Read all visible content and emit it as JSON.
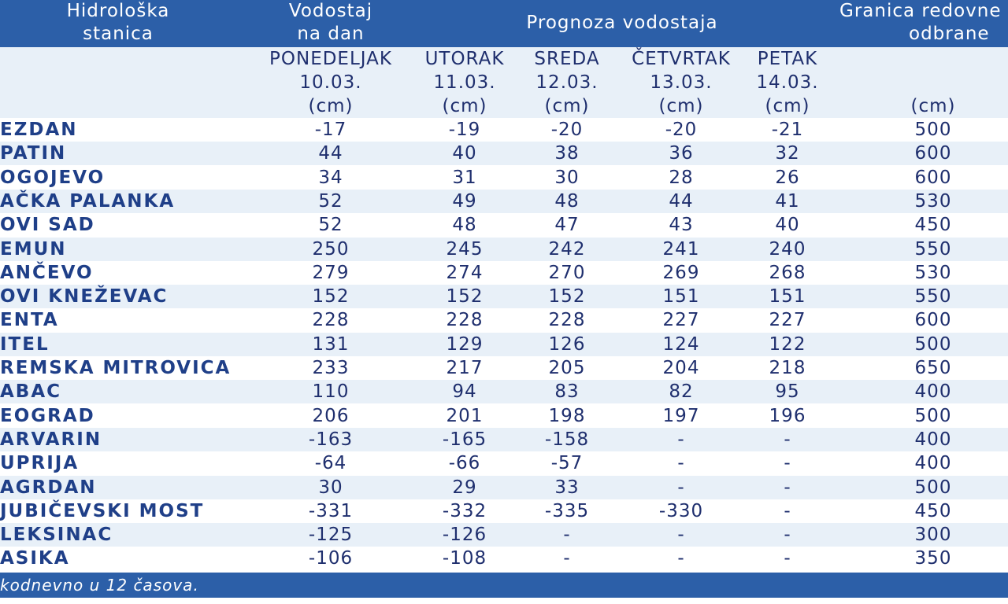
{
  "header": {
    "station_col": [
      "Hidrološka",
      "stanica"
    ],
    "today_col": [
      "Vodostaj",
      "na dan"
    ],
    "forecast_col": "Prognoza vodostaja",
    "limit_col": [
      "Granica redovne",
      "odbrane"
    ]
  },
  "subheader": {
    "today": [
      "PONEDELJAK",
      "10.03.",
      "(cm)"
    ],
    "d1": [
      "UTORAK",
      "11.03.",
      "(cm)"
    ],
    "d2": [
      "SREDA",
      "12.03.",
      "(cm)"
    ],
    "d3": [
      "ČETVRTAK",
      "13.03.",
      "(cm)"
    ],
    "d4": [
      "PETAK",
      "14.03.",
      "(cm)"
    ],
    "limit_unit": "(cm)"
  },
  "rows": [
    {
      "station": "EZDAN",
      "values": [
        "-17",
        "-19",
        "-20",
        "-20",
        "-21",
        "500"
      ]
    },
    {
      "station": "PATIN",
      "values": [
        "44",
        "40",
        "38",
        "36",
        "32",
        "600"
      ]
    },
    {
      "station": "OGOJEVO",
      "values": [
        "34",
        "31",
        "30",
        "28",
        "26",
        "600"
      ]
    },
    {
      "station": "AČKA PALANKA",
      "values": [
        "52",
        "49",
        "48",
        "44",
        "41",
        "530"
      ]
    },
    {
      "station": "OVI SAD",
      "values": [
        "52",
        "48",
        "47",
        "43",
        "40",
        "450"
      ]
    },
    {
      "station": "EMUN",
      "values": [
        "250",
        "245",
        "242",
        "241",
        "240",
        "550"
      ]
    },
    {
      "station": "ANČEVO",
      "values": [
        "279",
        "274",
        "270",
        "269",
        "268",
        "530"
      ]
    },
    {
      "station": "OVI KNEŽEVAC",
      "values": [
        "152",
        "152",
        "152",
        "151",
        "151",
        "550"
      ]
    },
    {
      "station": "ENTA",
      "values": [
        "228",
        "228",
        "228",
        "227",
        "227",
        "600"
      ]
    },
    {
      "station": "ITEL",
      "values": [
        "131",
        "129",
        "126",
        "124",
        "122",
        "500"
      ]
    },
    {
      "station": "REMSKA MITROVICA",
      "values": [
        "233",
        "217",
        "205",
        "204",
        "218",
        "650"
      ]
    },
    {
      "station": "ABAC",
      "values": [
        "110",
        "94",
        "83",
        "82",
        "95",
        "400"
      ]
    },
    {
      "station": "EOGRAD",
      "values": [
        "206",
        "201",
        "198",
        "197",
        "196",
        "500"
      ]
    },
    {
      "station": "ARVARIN",
      "values": [
        "-163",
        "-165",
        "-158",
        "-",
        "-",
        "400"
      ]
    },
    {
      "station": "UPRIJA",
      "values": [
        "-64",
        "-66",
        "-57",
        "-",
        "-",
        "400"
      ]
    },
    {
      "station": "AGRDAN",
      "values": [
        "30",
        "29",
        "33",
        "-",
        "-",
        "500"
      ]
    },
    {
      "station": "JUBIČEVSKI MOST",
      "values": [
        "-331",
        "-332",
        "-335",
        "-330",
        "-",
        "450"
      ]
    },
    {
      "station": "LEKSINAC",
      "values": [
        "-125",
        "-126",
        "-",
        "-",
        "-",
        "300"
      ]
    },
    {
      "station": "ASIKA",
      "values": [
        "-106",
        "-108",
        "-",
        "-",
        "-",
        "350"
      ]
    }
  ],
  "footer": "kodnevno u 12 časova."
}
